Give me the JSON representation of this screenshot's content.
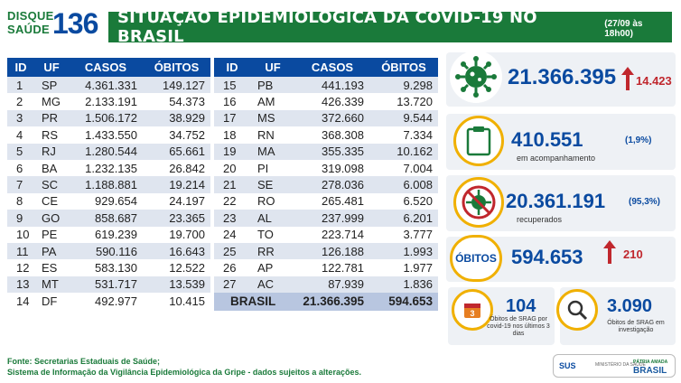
{
  "header": {
    "logo_line1": "DISQUE",
    "logo_line2": "SAÚDE",
    "logo_number": "136",
    "title": "SITUAÇÃO EPIDEMIOLÓGICA DA COVID-19 NO BRASIL",
    "date": "(27/09 às 18h00)"
  },
  "table_headers": [
    "ID",
    "UF",
    "CASOS",
    "ÓBITOS"
  ],
  "table_left": [
    {
      "id": "1",
      "uf": "SP",
      "casos": "4.361.331",
      "obitos": "149.127"
    },
    {
      "id": "2",
      "uf": "MG",
      "casos": "2.133.191",
      "obitos": "54.373"
    },
    {
      "id": "3",
      "uf": "PR",
      "casos": "1.506.172",
      "obitos": "38.929"
    },
    {
      "id": "4",
      "uf": "RS",
      "casos": "1.433.550",
      "obitos": "34.752"
    },
    {
      "id": "5",
      "uf": "RJ",
      "casos": "1.280.544",
      "obitos": "65.661"
    },
    {
      "id": "6",
      "uf": "BA",
      "casos": "1.232.135",
      "obitos": "26.842"
    },
    {
      "id": "7",
      "uf": "SC",
      "casos": "1.188.881",
      "obitos": "19.214"
    },
    {
      "id": "8",
      "uf": "CE",
      "casos": "929.654",
      "obitos": "24.197"
    },
    {
      "id": "9",
      "uf": "GO",
      "casos": "858.687",
      "obitos": "23.365"
    },
    {
      "id": "10",
      "uf": "PE",
      "casos": "619.239",
      "obitos": "19.700"
    },
    {
      "id": "11",
      "uf": "PA",
      "casos": "590.116",
      "obitos": "16.643"
    },
    {
      "id": "12",
      "uf": "ES",
      "casos": "583.130",
      "obitos": "12.522"
    },
    {
      "id": "13",
      "uf": "MT",
      "casos": "531.717",
      "obitos": "13.539"
    },
    {
      "id": "14",
      "uf": "DF",
      "casos": "492.977",
      "obitos": "10.415"
    }
  ],
  "table_right": [
    {
      "id": "15",
      "uf": "PB",
      "casos": "441.193",
      "obitos": "9.298"
    },
    {
      "id": "16",
      "uf": "AM",
      "casos": "426.339",
      "obitos": "13.720"
    },
    {
      "id": "17",
      "uf": "MS",
      "casos": "372.660",
      "obitos": "9.544"
    },
    {
      "id": "18",
      "uf": "RN",
      "casos": "368.308",
      "obitos": "7.334"
    },
    {
      "id": "19",
      "uf": "MA",
      "casos": "355.335",
      "obitos": "10.162"
    },
    {
      "id": "20",
      "uf": "PI",
      "casos": "319.098",
      "obitos": "7.004"
    },
    {
      "id": "21",
      "uf": "SE",
      "casos": "278.036",
      "obitos": "6.008"
    },
    {
      "id": "22",
      "uf": "RO",
      "casos": "265.481",
      "obitos": "6.520"
    },
    {
      "id": "23",
      "uf": "AL",
      "casos": "237.999",
      "obitos": "6.201"
    },
    {
      "id": "24",
      "uf": "TO",
      "casos": "223.714",
      "obitos": "3.777"
    },
    {
      "id": "25",
      "uf": "RR",
      "casos": "126.188",
      "obitos": "1.993"
    },
    {
      "id": "26",
      "uf": "AP",
      "casos": "122.781",
      "obitos": "1.977"
    },
    {
      "id": "27",
      "uf": "AC",
      "casos": "87.939",
      "obitos": "1.836"
    }
  ],
  "total": {
    "label": "BRASIL",
    "casos": "21.366.395",
    "obitos": "594.653"
  },
  "summary": {
    "casos_total": "21.366.395",
    "casos_novos": "14.423",
    "acompanhamento": "410.551",
    "acompanhamento_pct": "(1,9%)",
    "acompanhamento_label": "em acompanhamento",
    "recuperados": "20.361.191",
    "recuperados_pct": "(95,3%)",
    "recuperados_label": "recuperados",
    "obitos_label": "ÓBITOS",
    "obitos_total": "594.653",
    "obitos_novos": "210",
    "srag_3dias": "104",
    "srag_3dias_label": "Óbitos de SRAG por covid-19 nos últimos 3 dias",
    "srag_investigacao": "3.090",
    "srag_investigacao_label": "Óbitos de SRAG em investigação",
    "small_icon_digit": "3"
  },
  "footer": {
    "line1": "Fonte: Secretarias Estaduais de Saúde;",
    "line2": "Sistema de Informação da Vigilância Epidemiológica da Gripe - dados sujeitos a alterações."
  },
  "gov_logo": {
    "sus": "SUS",
    "ministry": "MINISTÉRIO DA SAÚDE",
    "br_line1": "PÁTRIA AMADA",
    "br_line2": "BRASIL"
  },
  "colors": {
    "green": "#1a7a3a",
    "blue": "#0a4aa0",
    "red": "#c0272d",
    "gold": "#f0b000"
  }
}
